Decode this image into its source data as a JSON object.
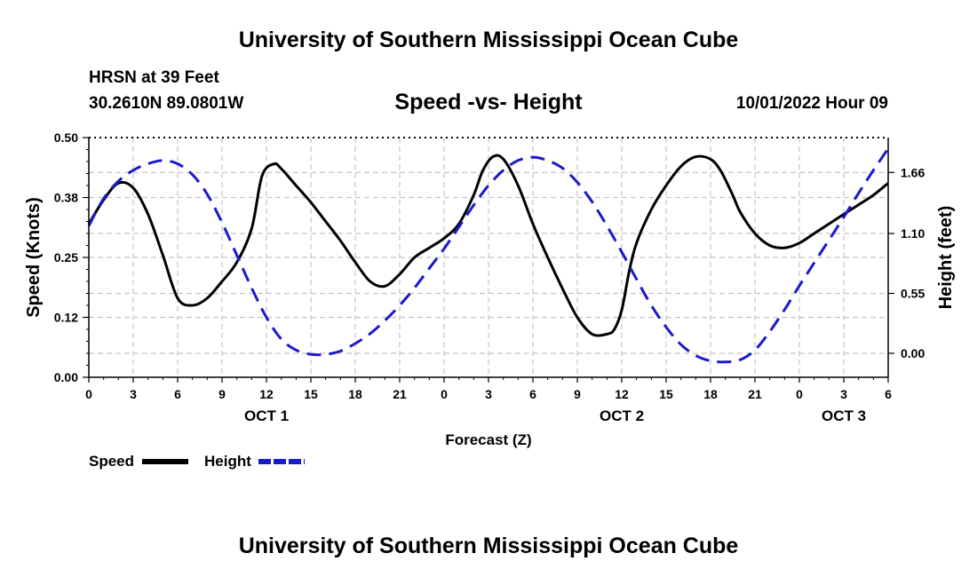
{
  "page": {
    "title_top": "University of Southern Mississippi Ocean Cube",
    "station": "HRSN at 39 Feet",
    "coords": "30.2610N  89.0801W",
    "subtitle": "Speed -vs- Height",
    "datestamp": "10/01/2022 Hour 09",
    "title_bottom": "University of Southern Mississippi Ocean Cube"
  },
  "chart_data": {
    "type": "line",
    "title": "Speed -vs- Height",
    "xlabel": "Forecast (Z)",
    "ylabel": "Speed (Knots)",
    "y2label": "Height (feet)",
    "x_range_hours": [
      0,
      54
    ],
    "x_tick_hours": [
      0,
      3,
      6,
      9,
      12,
      15,
      18,
      21,
      24,
      27,
      30,
      33,
      36,
      39,
      42,
      45,
      48,
      51,
      54
    ],
    "x_tick_labels": [
      "0",
      "3",
      "6",
      "9",
      "12",
      "15",
      "18",
      "21",
      "0",
      "3",
      "6",
      "9",
      "12",
      "15",
      "18",
      "21",
      "0",
      "3",
      "6"
    ],
    "day_labels": [
      {
        "hour": 12,
        "label": "OCT 1"
      },
      {
        "hour": 36,
        "label": "OCT 2"
      },
      {
        "hour": 51,
        "label": "OCT 3"
      }
    ],
    "y_left": {
      "range": [
        0,
        0.5
      ],
      "ticks": [
        0.0,
        0.125,
        0.25,
        0.375,
        0.5
      ],
      "tick_labels": [
        "0.00",
        "0.12",
        "0.25",
        "0.38",
        "0.50"
      ]
    },
    "y_right": {
      "range": [
        -0.22,
        1.98
      ],
      "ticks": [
        0.0,
        0.55,
        1.1,
        1.66
      ],
      "tick_labels": [
        "0.00",
        "0.55",
        "1.10",
        "1.66"
      ]
    },
    "grid": true,
    "legend": {
      "position": "bottom-left",
      "entries": [
        {
          "label": "Speed",
          "color": "#000000",
          "style": "solid"
        },
        {
          "label": "Height",
          "color": "#1a1acc",
          "style": "dashed"
        }
      ]
    },
    "series": [
      {
        "name": "Speed",
        "axis": "left",
        "color": "#000000",
        "x": [
          0,
          1,
          2,
          3,
          4,
          5,
          6,
          7,
          8,
          9,
          10,
          11,
          11.7,
          12.5,
          13,
          14,
          15,
          16,
          17,
          18,
          19,
          20,
          21,
          22,
          23,
          24,
          25,
          26,
          26.6,
          27.3,
          28,
          29,
          30,
          31,
          32,
          33,
          34,
          35,
          35.5,
          36,
          36.5,
          37,
          38,
          39,
          40,
          41,
          42,
          42.7,
          43.5,
          44,
          45,
          46,
          47,
          48,
          49,
          50,
          51,
          52,
          53,
          54
        ],
        "values": [
          0.32,
          0.37,
          0.405,
          0.395,
          0.34,
          0.255,
          0.165,
          0.15,
          0.165,
          0.2,
          0.24,
          0.31,
          0.42,
          0.445,
          0.435,
          0.4,
          0.365,
          0.325,
          0.285,
          0.24,
          0.2,
          0.19,
          0.215,
          0.25,
          0.27,
          0.29,
          0.32,
          0.38,
          0.43,
          0.46,
          0.455,
          0.4,
          0.32,
          0.25,
          0.185,
          0.125,
          0.09,
          0.09,
          0.1,
          0.14,
          0.22,
          0.28,
          0.35,
          0.4,
          0.44,
          0.46,
          0.455,
          0.43,
          0.38,
          0.345,
          0.3,
          0.275,
          0.27,
          0.28,
          0.3,
          0.32,
          0.34,
          0.36,
          0.38,
          0.405
        ]
      },
      {
        "name": "Height",
        "axis": "right",
        "color": "#1a1acc",
        "x": [
          0,
          1,
          2,
          3,
          4,
          5,
          6,
          7,
          8,
          9,
          10,
          11,
          12,
          13,
          14,
          15,
          16,
          17,
          18,
          19,
          20,
          21,
          22,
          23,
          24,
          25,
          26,
          27,
          28,
          29,
          30,
          31,
          32,
          33,
          34,
          35,
          36,
          37,
          38,
          39,
          40,
          41,
          42,
          43,
          44,
          45,
          46,
          47,
          48,
          49,
          50,
          51,
          52,
          53,
          54
        ],
        "values": [
          1.17,
          1.42,
          1.58,
          1.68,
          1.74,
          1.77,
          1.74,
          1.64,
          1.46,
          1.2,
          0.9,
          0.6,
          0.33,
          0.13,
          0.03,
          -0.01,
          -0.01,
          0.02,
          0.09,
          0.18,
          0.3,
          0.44,
          0.6,
          0.78,
          0.96,
          1.16,
          1.36,
          1.54,
          1.68,
          1.77,
          1.8,
          1.77,
          1.7,
          1.57,
          1.39,
          1.17,
          0.93,
          0.68,
          0.44,
          0.24,
          0.08,
          -0.02,
          -0.07,
          -0.08,
          -0.06,
          0.03,
          0.2,
          0.4,
          0.62,
          0.83,
          1.04,
          1.25,
          1.47,
          1.68,
          1.88
        ]
      }
    ]
  }
}
